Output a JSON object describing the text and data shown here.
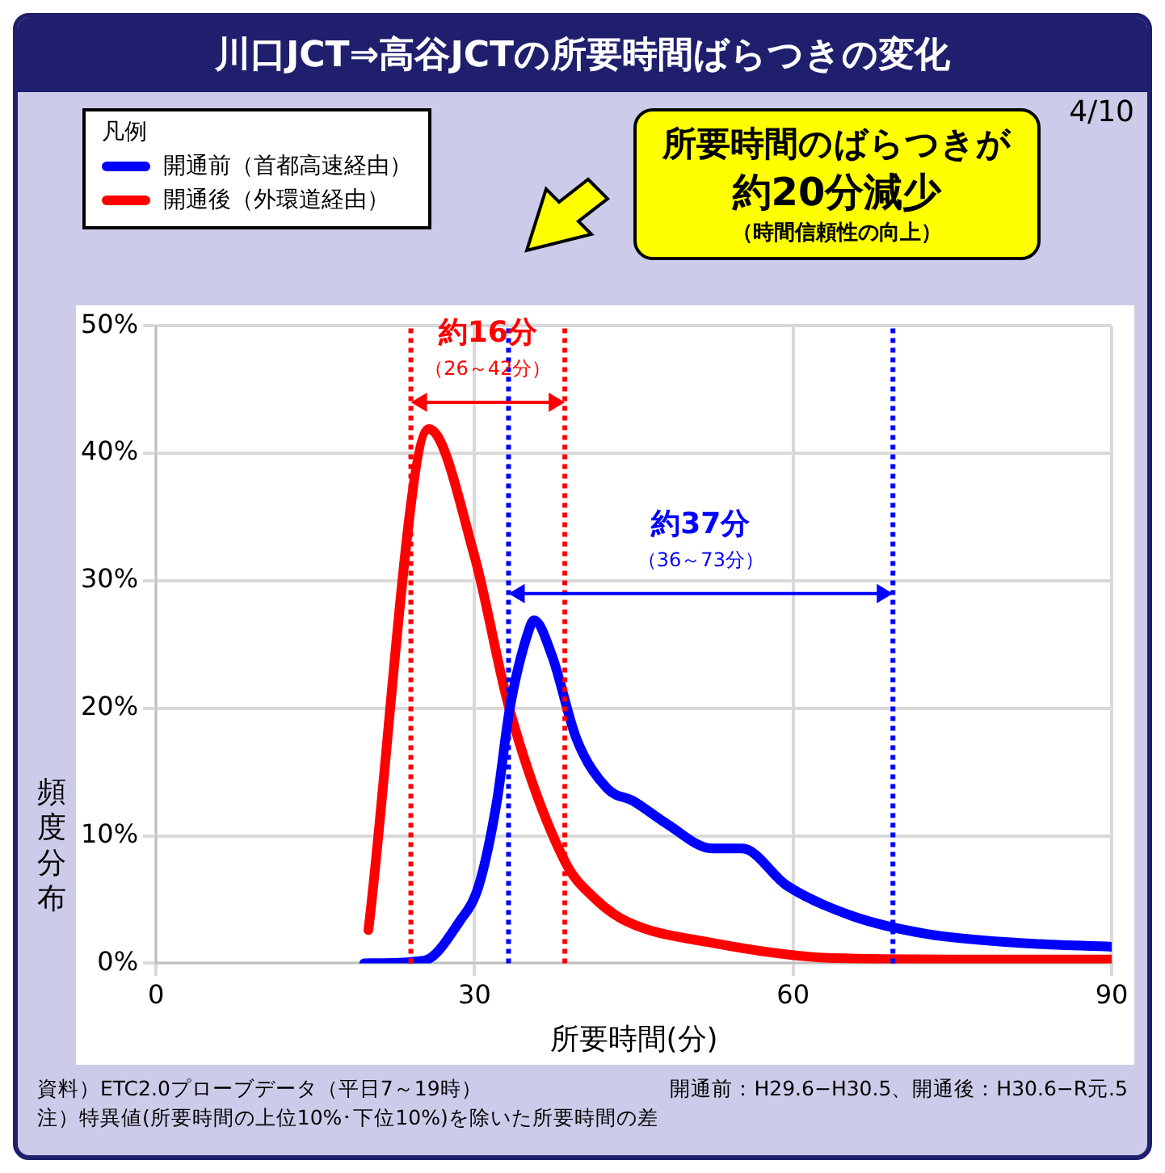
{
  "chart_data": {
    "type": "line",
    "title": "川口JCT⇒高谷JCTの所要時間ばらつきの変化",
    "xlabel": "所要時間(分)",
    "ylabel": "頻度分布",
    "legend_title": "凡例",
    "series": [
      {
        "name": "開通前（首都高速経由）",
        "color": "#0000ff",
        "x": [
          19.6,
          25.2,
          28.6,
          30.4,
          32.1,
          33.3,
          35.1,
          35.6,
          37.3,
          39.6,
          42.5,
          45,
          48,
          52.4,
          55.2,
          59.4,
          65.6,
          72.6,
          81.3,
          90
        ],
        "values": [
          0,
          0.2,
          3.3,
          6.1,
          12.7,
          19.9,
          26.1,
          26.9,
          24.1,
          17.6,
          13.7,
          12.7,
          11,
          9,
          9,
          6.1,
          3.7,
          2.3,
          1.6,
          1.3
        ]
      },
      {
        "name": "開通後（外環道経由）",
        "color": "#ff0000",
        "x": [
          20,
          25.7,
          30,
          33.3,
          38.5,
          41.3,
          44.3,
          52.4,
          63.9,
          75,
          90
        ],
        "values": [
          2.6,
          41.9,
          31.9,
          19.9,
          8,
          5.1,
          3.3,
          1.6,
          0.4,
          0.3,
          0.3
        ]
      }
    ],
    "xlim": [
      0,
      90
    ],
    "xticks": [
      0,
      30,
      60,
      90
    ],
    "ylim": [
      0,
      50
    ],
    "yticks": [
      {
        "value": 0,
        "label": "0%"
      },
      {
        "value": 10,
        "label": "10%"
      },
      {
        "value": 20,
        "label": "20%"
      },
      {
        "value": 30,
        "label": "30%"
      },
      {
        "value": 40,
        "label": "40%"
      },
      {
        "value": 50,
        "label": "50%"
      }
    ],
    "grid": true,
    "legend": "top left",
    "marker": "none",
    "line_style": "solid",
    "ref_lines": [
      {
        "axis": "x",
        "value": 24,
        "color": "#ff0000",
        "line_style": "dotted"
      },
      {
        "axis": "x",
        "value": 38.5,
        "color": "#ff0000",
        "line_style": "dotted"
      },
      {
        "axis": "x",
        "value": 33.2,
        "color": "#0000ff",
        "line_style": "dotted"
      },
      {
        "axis": "x",
        "value": 69.4,
        "color": "#0000ff",
        "line_style": "dotted"
      }
    ],
    "annotations": [
      "所要時間のばらつきが",
      "約20分減少",
      "（時間信頼性の向上）",
      "4/10",
      "資料）ETC2.0プローブデータ（平日7～19時）",
      "開通前：H29.6−H30.5、開通後：H30.6−R元.5",
      "注）特異値(所要時間の上位10%･下位10%)を除いた所要時間の差",
      "約16分",
      "（26～42分）",
      "約37分",
      "（36～73分）"
    ]
  }
}
